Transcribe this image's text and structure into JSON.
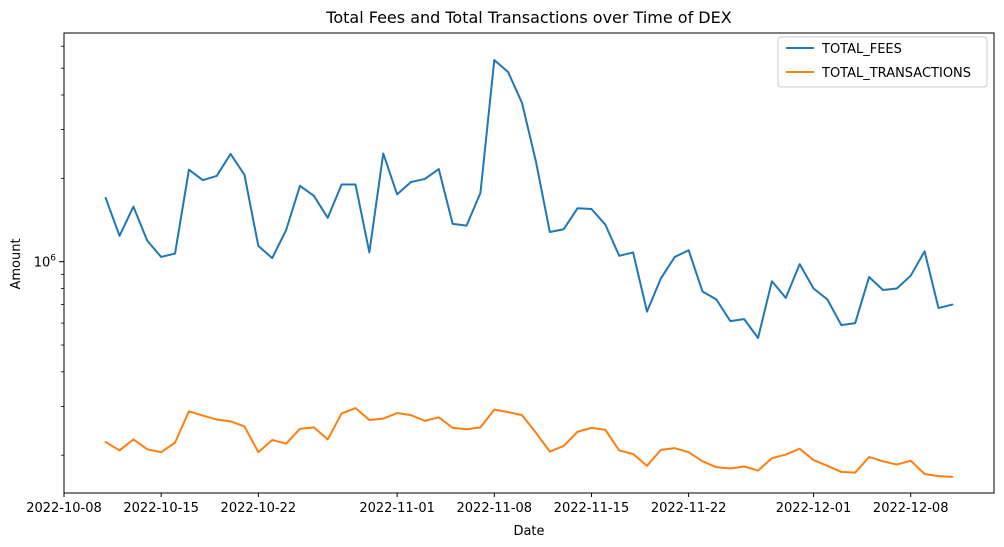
{
  "chart_data": {
    "type": "line",
    "title": "Total Fees and Total Transactions over Time of DEX",
    "xlabel": "Date",
    "ylabel": "Amount",
    "yscale": "log",
    "xlim": [
      "2022-10-08",
      "2022-12-14"
    ],
    "ylim": [
      146000,
      6700000
    ],
    "x_ticks": [
      "2022-10-08",
      "2022-10-15",
      "2022-10-22",
      "2022-11-01",
      "2022-11-08",
      "2022-11-15",
      "2022-11-22",
      "2022-12-01",
      "2022-12-08"
    ],
    "y_ticks": [
      {
        "value": 1000000,
        "label": "10^6",
        "base": "10",
        "exp": "6"
      }
    ],
    "legend_position": "top-right",
    "grid": false,
    "x": [
      "2022-10-11",
      "2022-10-12",
      "2022-10-13",
      "2022-10-14",
      "2022-10-15",
      "2022-10-16",
      "2022-10-17",
      "2022-10-18",
      "2022-10-19",
      "2022-10-20",
      "2022-10-21",
      "2022-10-22",
      "2022-10-23",
      "2022-10-24",
      "2022-10-25",
      "2022-10-26",
      "2022-10-27",
      "2022-10-28",
      "2022-10-29",
      "2022-10-30",
      "2022-10-31",
      "2022-11-01",
      "2022-11-02",
      "2022-11-03",
      "2022-11-04",
      "2022-11-05",
      "2022-11-06",
      "2022-11-07",
      "2022-11-08",
      "2022-11-09",
      "2022-11-10",
      "2022-11-11",
      "2022-11-12",
      "2022-11-13",
      "2022-11-14",
      "2022-11-15",
      "2022-11-16",
      "2022-11-17",
      "2022-11-18",
      "2022-11-19",
      "2022-11-20",
      "2022-11-21",
      "2022-11-22",
      "2022-11-23",
      "2022-11-24",
      "2022-11-25",
      "2022-11-26",
      "2022-11-27",
      "2022-11-28",
      "2022-11-29",
      "2022-11-30",
      "2022-12-01",
      "2022-12-02",
      "2022-12-03",
      "2022-12-04",
      "2022-12-05",
      "2022-12-06",
      "2022-12-07",
      "2022-12-08",
      "2022-12-09",
      "2022-12-10",
      "2022-12-11"
    ],
    "series": [
      {
        "name": "TOTAL_FEES",
        "color": "#1f77b4",
        "values": [
          1700000,
          1240000,
          1580000,
          1190000,
          1040000,
          1070000,
          2150000,
          1970000,
          2040000,
          2450000,
          2060000,
          1140000,
          1030000,
          1300000,
          1880000,
          1730000,
          1440000,
          1900000,
          1900000,
          1080000,
          2460000,
          1750000,
          1940000,
          1990000,
          2160000,
          1370000,
          1350000,
          1770000,
          5350000,
          4840000,
          3740000,
          2300000,
          1280000,
          1310000,
          1560000,
          1550000,
          1360000,
          1050000,
          1080000,
          660000,
          870000,
          1040000,
          1100000,
          780000,
          730000,
          610000,
          620000,
          530000,
          850000,
          740000,
          980000,
          800000,
          730000,
          590000,
          600000,
          880000,
          790000,
          800000,
          890000,
          1090000,
          680000,
          700000
        ]
      },
      {
        "name": "TOTAL_TRANSACTIONS",
        "color": "#ff7f0e",
        "values": [
          223000,
          208000,
          228000,
          210000,
          205000,
          222000,
          288000,
          278000,
          269000,
          265000,
          254000,
          205000,
          227000,
          220000,
          249000,
          252000,
          228000,
          283000,
          296000,
          268000,
          271000,
          284000,
          279000,
          266000,
          274000,
          251000,
          248000,
          252000,
          292000,
          286000,
          279000,
          241000,
          206000,
          216000,
          243000,
          251000,
          247000,
          208000,
          202000,
          183000,
          209000,
          212000,
          205000,
          190000,
          181000,
          179000,
          182000,
          176000,
          195000,
          201000,
          211000,
          192000,
          183000,
          174000,
          173000,
          197000,
          190000,
          185000,
          191000,
          171000,
          168000,
          167000
        ]
      }
    ]
  }
}
